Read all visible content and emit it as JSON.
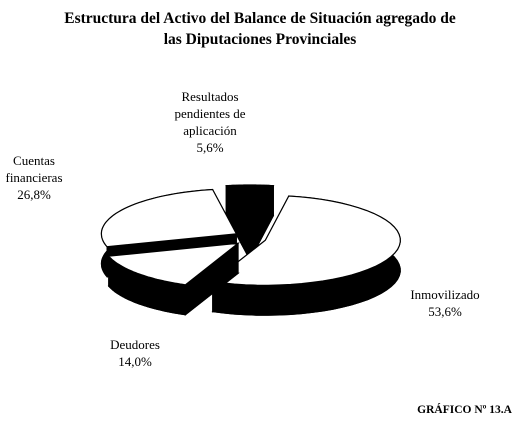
{
  "chart_data": {
    "type": "pie3d",
    "title": "Estructura del Activo del Balance de Situación agregado de las Diputaciones Provinciales",
    "categories": [
      "Inmovilizado",
      "Deudores",
      "Cuentas financieras",
      "Resultados pendientes de aplicación"
    ],
    "values": [
      53.6,
      14.0,
      26.8,
      5.6
    ],
    "value_labels": [
      "53,6%",
      "14,0%",
      "26,8%",
      "5,6%"
    ],
    "colors": [
      "#ffffff",
      "#ffffff",
      "#ffffff",
      "#000000"
    ],
    "footer": "GRÁFICO Nº 13.A"
  }
}
